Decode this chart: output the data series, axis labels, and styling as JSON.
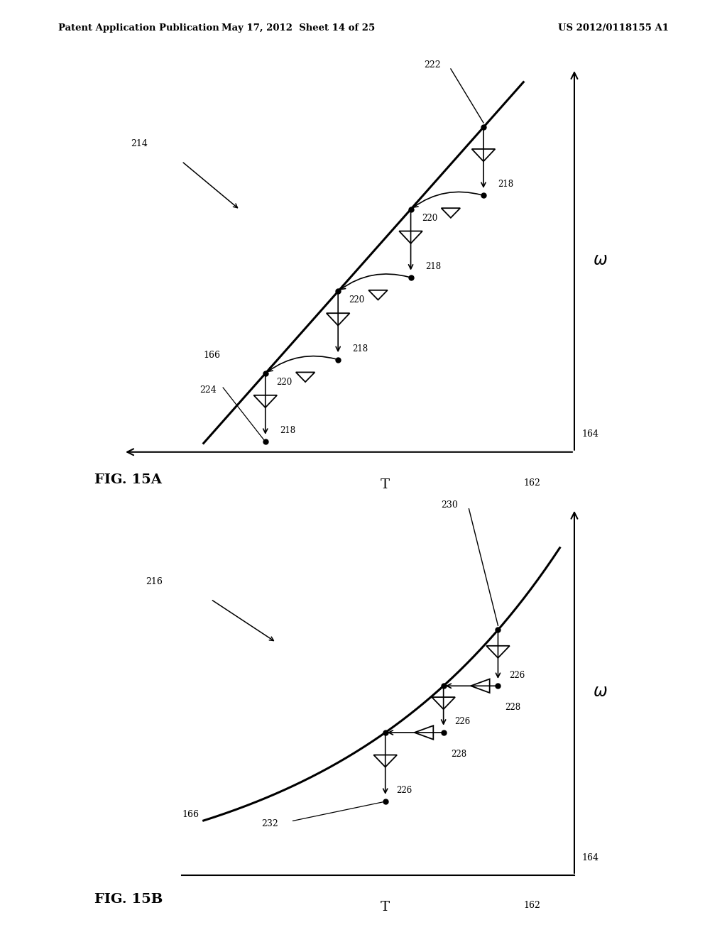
{
  "header_left": "Patent Application Publication",
  "header_mid": "May 17, 2012  Sheet 14 of 25",
  "header_right": "US 2012/0118155 A1",
  "fig_a_label": "FIG. 15A",
  "fig_b_label": "FIG. 15B",
  "bg": "#ffffff"
}
